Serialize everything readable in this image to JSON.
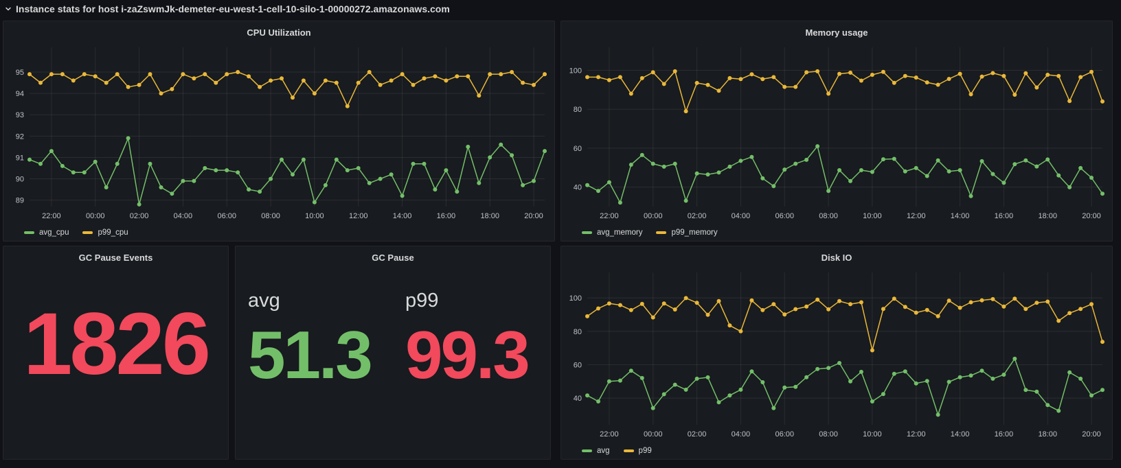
{
  "header": {
    "title": "Instance stats for host i-zaZswmJk-demeter-eu-west-1-cell-10-silo-1-00000272.amazonaws.com"
  },
  "colors": {
    "page_bg": "#111217",
    "panel_bg": "#181B1F",
    "panel_border": "#25262B",
    "title_text": "#D8D9DA",
    "axis_text": "#BFC4C9",
    "grid": "rgba(255,255,255,0.08)",
    "green": "#73BF69",
    "yellow": "#EAB839",
    "red": "#F2495C"
  },
  "chart_data": [
    {
      "panel": "cpu",
      "type": "line",
      "title": "CPU Utilization",
      "y_ticks": [
        89,
        90,
        91,
        92,
        93,
        94,
        95
      ],
      "ylim": [
        88.7,
        95.9
      ],
      "x_ticks": [
        "22:00",
        "00:00",
        "02:00",
        "04:00",
        "06:00",
        "08:00",
        "10:00",
        "12:00",
        "14:00",
        "16:00",
        "18:00",
        "20:00"
      ],
      "x_tick_indices": [
        2,
        6,
        10,
        14,
        18,
        22,
        26,
        30,
        34,
        38,
        42,
        46
      ],
      "legend_position": "bottom",
      "grid": true,
      "series": [
        {
          "name": "avg_cpu",
          "color": "green",
          "values": [
            90.9,
            90.7,
            91.3,
            90.6,
            90.3,
            90.3,
            90.8,
            89.6,
            90.7,
            91.9,
            88.8,
            90.7,
            89.6,
            89.3,
            89.9,
            89.9,
            90.5,
            90.4,
            90.4,
            90.3,
            89.5,
            89.4,
            90.0,
            90.9,
            90.2,
            90.9,
            88.9,
            89.7,
            90.9,
            90.4,
            90.5,
            89.8,
            90.0,
            90.2,
            89.2,
            90.7,
            90.7,
            89.5,
            90.4,
            89.4,
            91.5,
            89.8,
            91.0,
            91.6,
            91.1,
            89.7,
            89.9,
            91.3
          ]
        },
        {
          "name": "p99_cpu",
          "color": "yellow",
          "values": [
            94.9,
            94.5,
            94.9,
            94.9,
            94.6,
            94.9,
            94.8,
            94.5,
            94.9,
            94.3,
            94.4,
            94.9,
            94.0,
            94.2,
            94.9,
            94.7,
            94.9,
            94.5,
            94.9,
            95.0,
            94.8,
            94.3,
            94.6,
            94.7,
            93.8,
            94.6,
            94.0,
            94.6,
            94.5,
            93.4,
            94.5,
            95.0,
            94.4,
            94.6,
            94.9,
            94.4,
            94.7,
            94.8,
            94.6,
            94.8,
            94.8,
            93.9,
            94.9,
            94.9,
            95.0,
            94.5,
            94.4,
            94.9
          ]
        }
      ]
    },
    {
      "panel": "memory",
      "type": "line",
      "title": "Memory usage",
      "y_ticks": [
        40,
        60,
        80,
        100
      ],
      "ylim": [
        30,
        109
      ],
      "x_ticks": [
        "22:00",
        "00:00",
        "02:00",
        "04:00",
        "06:00",
        "08:00",
        "10:00",
        "12:00",
        "14:00",
        "16:00",
        "18:00",
        "20:00"
      ],
      "x_tick_indices": [
        2,
        6,
        10,
        14,
        18,
        22,
        26,
        30,
        34,
        38,
        42,
        46
      ],
      "legend_position": "bottom",
      "grid": true,
      "series": [
        {
          "name": "avg_memory",
          "color": "green",
          "values": [
            41,
            38,
            42.5,
            32,
            51.5,
            56.5,
            52,
            50.5,
            52,
            33,
            47,
            46.5,
            47.5,
            50.5,
            53.5,
            55.5,
            44.5,
            40.5,
            49,
            52,
            54,
            61,
            38,
            48.7,
            43.1,
            48.7,
            47.8,
            54.3,
            54.5,
            48.1,
            49.8,
            45.7,
            53.7,
            48.1,
            48.7,
            35.4,
            53.3,
            46.7,
            42.2,
            51.8,
            53.7,
            50.6,
            54.2,
            46,
            39.9,
            49.8,
            44.8,
            36.6
          ]
        },
        {
          "name": "p99_memory",
          "color": "yellow",
          "values": [
            96.5,
            96.5,
            95,
            96.5,
            88,
            96,
            99,
            93,
            99.5,
            79,
            93.5,
            92.5,
            89.5,
            96,
            95.5,
            98,
            95.5,
            96.5,
            91.5,
            91.5,
            99,
            99.5,
            88,
            98.2,
            98.8,
            94.7,
            97.7,
            99.2,
            93.6,
            97.1,
            96.3,
            93.8,
            92.6,
            95.6,
            98.2,
            87.7,
            96.8,
            98.6,
            97.1,
            87.5,
            98.5,
            91.2,
            97.7,
            97.1,
            84.2,
            96.5,
            99.2,
            84.0
          ]
        }
      ]
    },
    {
      "panel": "gc_pause_events",
      "type": "stat",
      "title": "GC Pause Events",
      "value": "1826",
      "value_color": "red"
    },
    {
      "panel": "gc_pause",
      "type": "stat",
      "title": "GC Pause",
      "stats": [
        {
          "label": "avg",
          "value": "51.3",
          "color": "green"
        },
        {
          "label": "p99",
          "value": "99.3",
          "color": "red"
        }
      ]
    },
    {
      "panel": "disk",
      "type": "line",
      "title": "Disk IO",
      "y_ticks": [
        40,
        60,
        80,
        100
      ],
      "ylim": [
        24,
        112
      ],
      "x_ticks": [
        "22:00",
        "00:00",
        "02:00",
        "04:00",
        "06:00",
        "08:00",
        "10:00",
        "12:00",
        "14:00",
        "16:00",
        "18:00",
        "20:00"
      ],
      "x_tick_indices": [
        2,
        6,
        10,
        14,
        18,
        22,
        26,
        30,
        34,
        38,
        42,
        46
      ],
      "legend_position": "bottom",
      "grid": true,
      "series": [
        {
          "name": "avg",
          "color": "green",
          "values": [
            41.6,
            38,
            50,
            50.5,
            56.4,
            52,
            34,
            42.3,
            48,
            45,
            51.6,
            52.4,
            37.5,
            41.6,
            45,
            56,
            49.5,
            34,
            46.3,
            46.7,
            52.5,
            57.4,
            58,
            61,
            50,
            55.7,
            38,
            42.4,
            54.5,
            56,
            48.8,
            50.2,
            30,
            49.7,
            52.5,
            53.5,
            56.4,
            51.6,
            54,
            63.6,
            44.9,
            43.8,
            35.8,
            32.4,
            55.4,
            51.6,
            41.6,
            44.9
          ]
        },
        {
          "name": "p99",
          "color": "yellow",
          "values": [
            89,
            93.7,
            96.7,
            95.7,
            92.7,
            96.4,
            88.3,
            96.7,
            93.1,
            99.9,
            97.1,
            89.9,
            98.1,
            83.5,
            80,
            98.5,
            92.7,
            96.3,
            90.1,
            93.3,
            94.8,
            99,
            93.2,
            98.1,
            96.3,
            97.4,
            68.6,
            93.4,
            99.6,
            94.6,
            91.2,
            92.8,
            89.1,
            98.4,
            94.1,
            97.4,
            98.6,
            99.3,
            94.8,
            99.6,
            93.4,
            97.1,
            97.8,
            86.3,
            90.9,
            93.4,
            96.3,
            73.7
          ]
        }
      ]
    }
  ]
}
